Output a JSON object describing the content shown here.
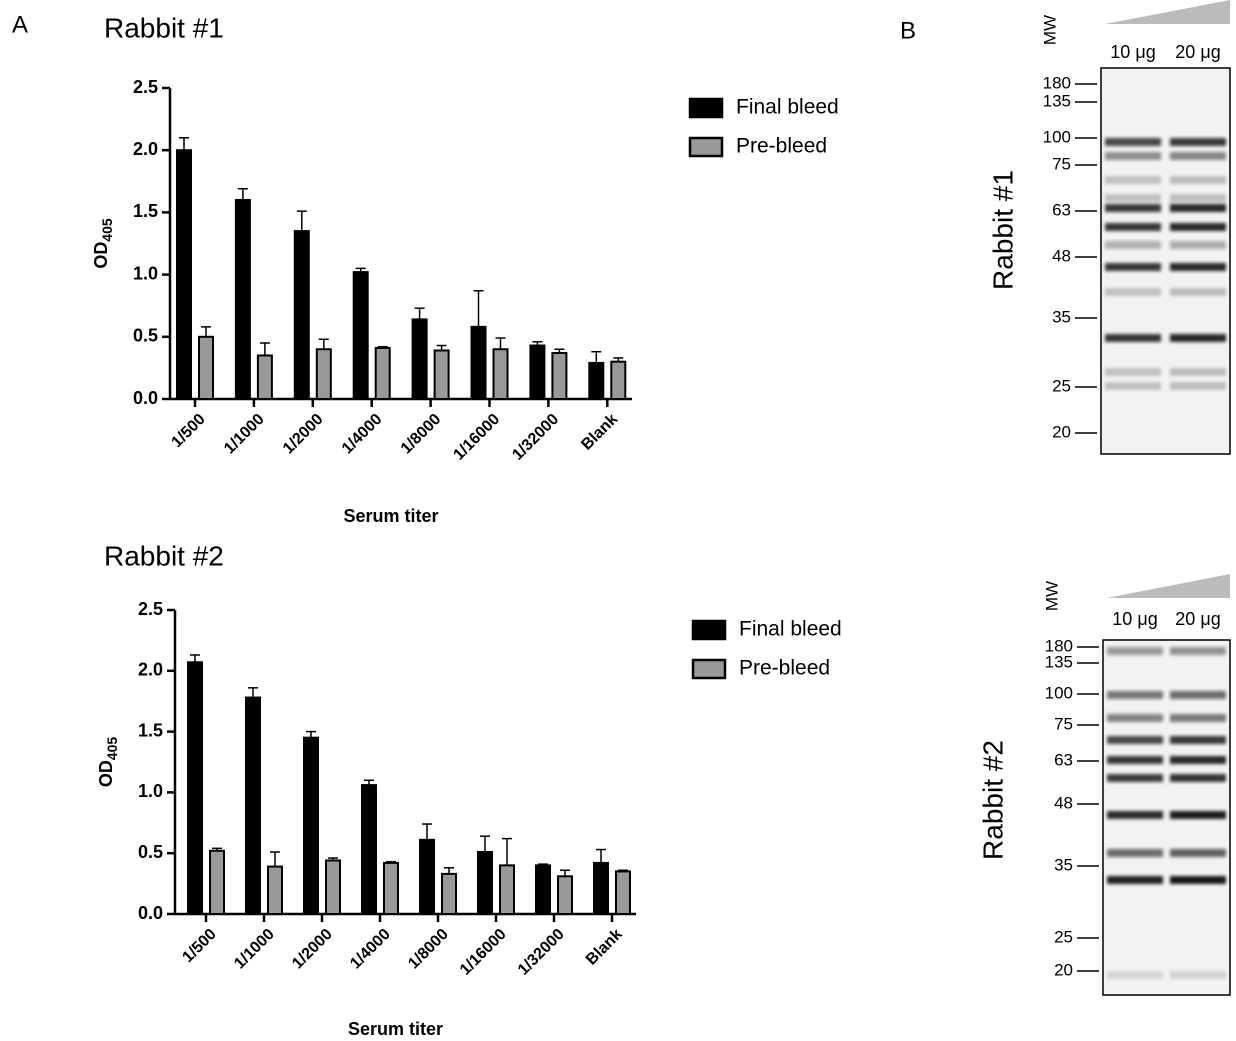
{
  "panels": [
    "A",
    "B"
  ],
  "chart_data": [
    {
      "type": "bar",
      "title": "Rabbit #1",
      "x_label": "Serum titer",
      "y_label": "OD",
      "y_label_sub": "405",
      "categories": [
        "1/500",
        "1/1000",
        "1/2000",
        "1/4000",
        "1/8000",
        "1/16000",
        "1/32000",
        "Blank"
      ],
      "series": [
        {
          "name": "Final bleed",
          "color": "#000000",
          "values": [
            2.0,
            1.6,
            1.35,
            1.02,
            0.64,
            0.58,
            0.43,
            0.29
          ],
          "errors": [
            0.1,
            0.09,
            0.16,
            0.03,
            0.09,
            0.29,
            0.03,
            0.09
          ]
        },
        {
          "name": "Pre-bleed",
          "color": "#999999",
          "values": [
            0.5,
            0.35,
            0.4,
            0.41,
            0.39,
            0.4,
            0.37,
            0.3
          ],
          "errors": [
            0.08,
            0.1,
            0.08,
            0.01,
            0.04,
            0.09,
            0.03,
            0.03
          ]
        }
      ],
      "ylim": [
        0,
        2.5
      ],
      "yticks": [
        {
          "value": 0,
          "label": "0.0"
        },
        0.5,
        {
          "value": 1,
          "label": "1.0"
        },
        1.5,
        {
          "value": 2,
          "label": "2.0"
        },
        2.5
      ],
      "legend": "right"
    },
    {
      "type": "bar",
      "title": "Rabbit #2",
      "x_label": "Serum titer",
      "y_label": "OD",
      "y_label_sub": "405",
      "categories": [
        "1/500",
        "1/1000",
        "1/2000",
        "1/4000",
        "1/8000",
        "1/16000",
        "1/32000",
        "Blank"
      ],
      "series": [
        {
          "name": "Final bleed",
          "color": "#000000",
          "values": [
            2.07,
            1.78,
            1.45,
            1.06,
            0.61,
            0.51,
            0.4,
            0.42
          ],
          "errors": [
            0.06,
            0.08,
            0.05,
            0.04,
            0.13,
            0.13,
            0.01,
            0.11
          ]
        },
        {
          "name": "Pre-bleed",
          "color": "#999999",
          "values": [
            0.52,
            0.39,
            0.44,
            0.42,
            0.33,
            0.4,
            0.31,
            0.35
          ],
          "errors": [
            0.02,
            0.12,
            0.02,
            0.01,
            0.05,
            0.22,
            0.05,
            0.01
          ]
        }
      ],
      "ylim": [
        0,
        2.5
      ],
      "yticks": [
        {
          "value": 0,
          "label": "0.0"
        },
        0.5,
        {
          "value": 1,
          "label": "1.0"
        },
        1.5,
        {
          "value": 2,
          "label": "2.0"
        },
        2.5
      ],
      "legend": "right"
    }
  ],
  "blots": [
    {
      "title": "Rabbit #1",
      "mw_label": "MW",
      "lanes": [
        "10 μg",
        "20 μg"
      ],
      "markers": [
        "180",
        "135",
        "100",
        "75",
        "63",
        "48",
        "35",
        "25",
        "20"
      ]
    },
    {
      "title": "Rabbit #2",
      "mw_label": "MW",
      "lanes": [
        "10 μg",
        "20 μg"
      ],
      "markers": [
        "180",
        "135",
        "100",
        "75",
        "63",
        "48",
        "35",
        "25",
        "20"
      ]
    }
  ]
}
